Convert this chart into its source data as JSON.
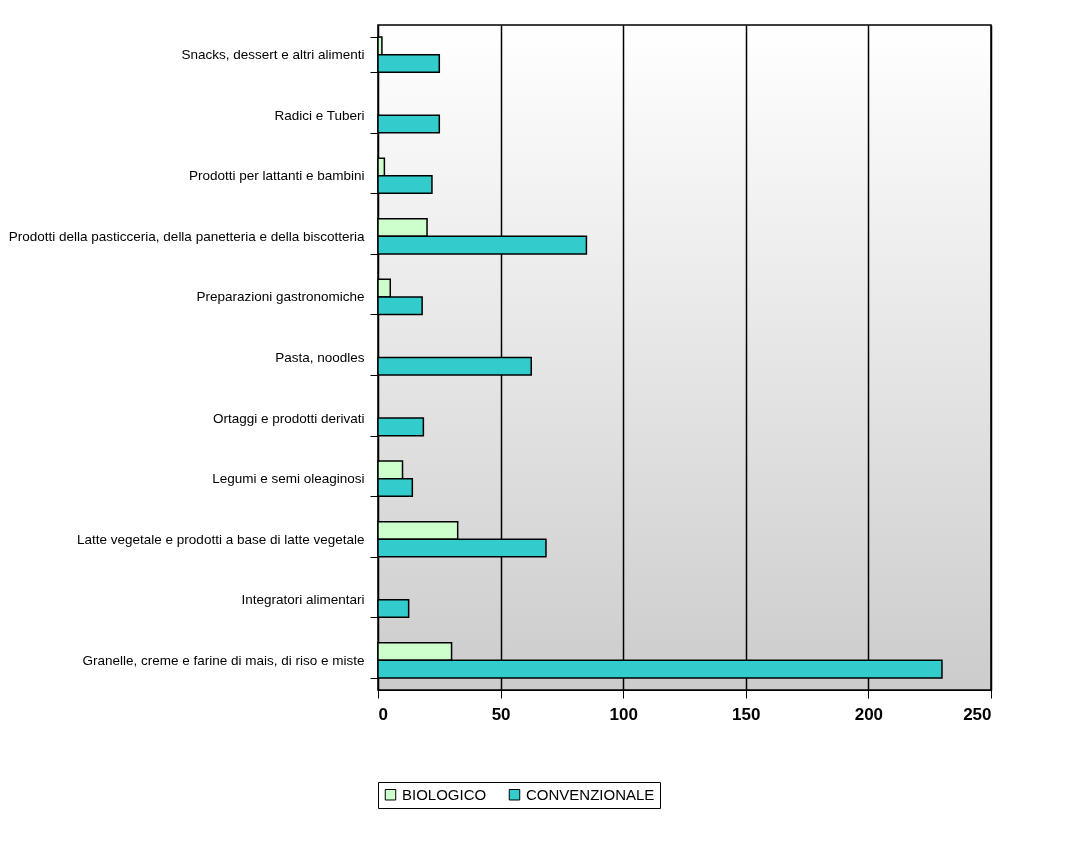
{
  "chart_data": {
    "type": "bar",
    "orientation": "horizontal",
    "categories": [
      "Snacks, dessert e altri alimenti",
      "Radici e Tuberi",
      "Prodotti per lattanti e bambini",
      "Prodotti della pasticceria, della panetteria e della biscotteria",
      "Preparazioni gastronomiche",
      "Pasta, noodles",
      "Ortaggi e prodotti derivati",
      "Legumi e semi oleaginosi",
      "Latte vegetale e prodotti a base di latte vegetale",
      "Integratori alimentari",
      "Granelle, creme e farine di mais, di riso e miste"
    ],
    "series": [
      {
        "name": "BIOLOGICO",
        "color": "#ccffcc",
        "values": [
          1.6,
          null,
          2.6,
          20,
          5,
          null,
          null,
          10,
          32.5,
          null,
          30
        ]
      },
      {
        "name": "CONVENZIONALE",
        "color": "#33cccc",
        "values": [
          25,
          25,
          22,
          85,
          18,
          62.5,
          18.5,
          14,
          68.5,
          12.5,
          230
        ]
      }
    ],
    "xlim": [
      0,
      250
    ],
    "xticks": [
      0,
      50,
      100,
      150,
      200,
      250
    ],
    "grid": "x",
    "legend": "bottom"
  }
}
